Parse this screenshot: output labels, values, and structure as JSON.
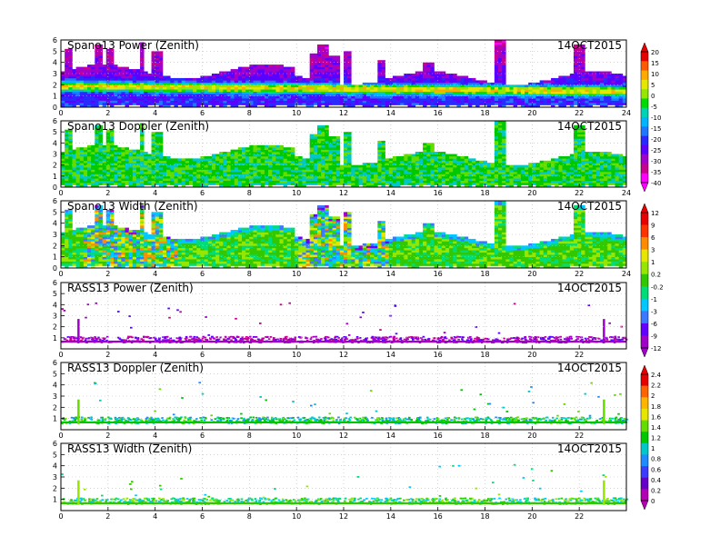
{
  "figure": {
    "date_label": "14OCT2015"
  },
  "colors": {
    "power_scale": [
      "#ff00ff",
      "#c80090",
      "#a000c8",
      "#5a00ff",
      "#2828ff",
      "#1e78ff",
      "#00b4ff",
      "#00d2b4",
      "#00dc00",
      "#96e600",
      "#e6e600",
      "#ffaa00",
      "#ff5a00",
      "#e60000"
    ],
    "wind_scale": [
      "#b400b4",
      "#6400c8",
      "#3c3cff",
      "#1e8cff",
      "#00c8c8",
      "#00c800",
      "#64dc00",
      "#e6e600",
      "#ffb400",
      "#ff6400",
      "#e60000"
    ],
    "width_scale": [
      "#a000c8",
      "#6400ff",
      "#3c78ff",
      "#00c8ff",
      "#00dc78",
      "#32c800",
      "#96e600",
      "#e6e600",
      "#ff8c00",
      "#ff3200",
      "#e60000"
    ]
  },
  "colorbars": [
    {
      "id": "power",
      "labels": [
        "20",
        "15",
        "10",
        "5",
        "0",
        "-5",
        "-10",
        "-15",
        "-20",
        "-25",
        "-30",
        "-35",
        "-40"
      ]
    },
    {
      "id": "width",
      "labels": [
        "12",
        "9",
        "6",
        "3",
        "1",
        "0.2",
        "-0.2",
        "-1",
        "-3",
        "-6",
        "-9",
        "-12"
      ]
    },
    {
      "id": "doppler",
      "labels": [
        "2.4",
        "2.2",
        "2",
        "1.8",
        "1.6",
        "1.4",
        "1.2",
        "1",
        "0.8",
        "0.6",
        "0.4",
        "0.2",
        "0"
      ]
    }
  ],
  "chart_data": [
    {
      "type": "heatmap",
      "title": "Spano13 Power (Zenith)",
      "date": "14OCT2015",
      "xlim": [
        0,
        24
      ],
      "ylim": [
        0,
        6
      ],
      "xticks": [
        "0",
        "2",
        "4",
        "6",
        "8",
        "10",
        "12",
        "14",
        "16",
        "18",
        "20",
        "22",
        "24"
      ],
      "yticks": [
        "0",
        "1",
        "2",
        "3",
        "4",
        "5",
        "6"
      ],
      "grid": true,
      "colorbar": "power",
      "description_of_field": "Wind-profiler echo power versus time (hours) and height (km); strong layer near 1.5-2.5 km, echoes up to ~3 km with tall bursts near hours 0.3, 3.5-4.2, 10.5-13, 13.5-16, 18.4-18.9, 21.7-22.3"
    },
    {
      "type": "heatmap",
      "title": "Spano13 Doppler (Zenith)",
      "date": "14OCT2015",
      "xlim": [
        0,
        24
      ],
      "ylim": [
        0,
        6
      ],
      "xticks": [
        "0",
        "2",
        "4",
        "6",
        "8",
        "10",
        "12",
        "14",
        "16",
        "18",
        "20",
        "22",
        "24"
      ],
      "yticks": [
        "0",
        "1",
        "2",
        "3",
        "4",
        "5",
        "6"
      ],
      "grid": true,
      "colorbar": "doppler"
    },
    {
      "type": "heatmap",
      "title": "Spano13 Width (Zenith)",
      "date": "14OCT2015",
      "xlim": [
        0,
        24
      ],
      "ylim": [
        0,
        6
      ],
      "xticks": [
        "0",
        "2",
        "4",
        "6",
        "8",
        "10",
        "12",
        "14",
        "16",
        "18",
        "20",
        "22",
        "24"
      ],
      "yticks": [
        "0",
        "1",
        "2",
        "3",
        "4",
        "5",
        "6"
      ],
      "grid": true,
      "colorbar": "width"
    },
    {
      "type": "heatmap",
      "title": "RASS13 Power (Zenith)",
      "date": "14OCT2015",
      "xlim": [
        0,
        24
      ],
      "ylim": [
        0,
        6
      ],
      "xticks": [
        "0",
        "2",
        "4",
        "6",
        "8",
        "10",
        "12",
        "14",
        "16",
        "18",
        "20",
        "22"
      ],
      "yticks": [
        "1",
        "2",
        "3",
        "4",
        "5",
        "6"
      ],
      "grid": true,
      "colorbar": "power"
    },
    {
      "type": "heatmap",
      "title": "RASS13 Doppler (Zenith)",
      "date": "14OCT2015",
      "xlim": [
        0,
        24
      ],
      "ylim": [
        0,
        6
      ],
      "xticks": [
        "0",
        "2",
        "4",
        "6",
        "8",
        "10",
        "12",
        "14",
        "16",
        "18",
        "20",
        "22"
      ],
      "yticks": [
        "1",
        "2",
        "3",
        "4",
        "5",
        "6"
      ],
      "grid": true,
      "colorbar": "doppler"
    },
    {
      "type": "heatmap",
      "title": "RASS13 Width (Zenith)",
      "date": "14OCT2015",
      "xlim": [
        0,
        24
      ],
      "ylim": [
        0,
        6
      ],
      "xticks": [
        "0",
        "2",
        "4",
        "6",
        "8",
        "10",
        "12",
        "14",
        "16",
        "18",
        "20",
        "22"
      ],
      "yticks": [
        "1",
        "2",
        "3",
        "4",
        "5",
        "6"
      ],
      "grid": true,
      "colorbar": "width"
    }
  ]
}
